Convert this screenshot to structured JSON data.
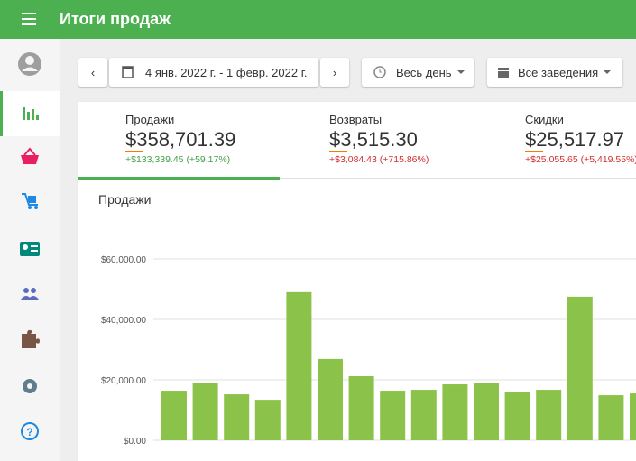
{
  "header": {
    "title": "Итоги продаж"
  },
  "filters": {
    "date_range": "4 янв. 2022 г. - 1 февр. 2022 г.",
    "time": "Весь день",
    "venue": "Все заведения"
  },
  "kpis": [
    {
      "label": "Продажи",
      "value": "$358,701.39",
      "change": "+$133,339.45 (+59.17%)"
    },
    {
      "label": "Возвраты",
      "value": "$3,515.30",
      "change": "+$3,084.43 (+715.86%)"
    },
    {
      "label": "Скидки",
      "value": "$25,517.97",
      "change": "+$25,055.65 (+5,419.55%)"
    }
  ],
  "chart_data": {
    "type": "bar",
    "title": "Продажи",
    "categories": [
      null,
      null,
      null,
      null,
      null,
      null,
      null,
      null,
      null,
      null,
      null,
      null,
      null,
      null,
      null,
      null
    ],
    "values": [
      16400,
      19100,
      15200,
      13400,
      49000,
      26900,
      21200,
      16400,
      16700,
      18500,
      19100,
      16100,
      16700,
      47500,
      14900,
      15500
    ],
    "color": "#8bc34a",
    "ylim": [
      0,
      60000
    ],
    "yticks": [
      {
        "value": 0,
        "label": "$0.00"
      },
      {
        "value": 20000,
        "label": "$20,000.00"
      },
      {
        "value": 40000,
        "label": "$40,000.00"
      },
      {
        "value": 60000,
        "label": "$60,000.00"
      }
    ],
    "grid": true
  }
}
